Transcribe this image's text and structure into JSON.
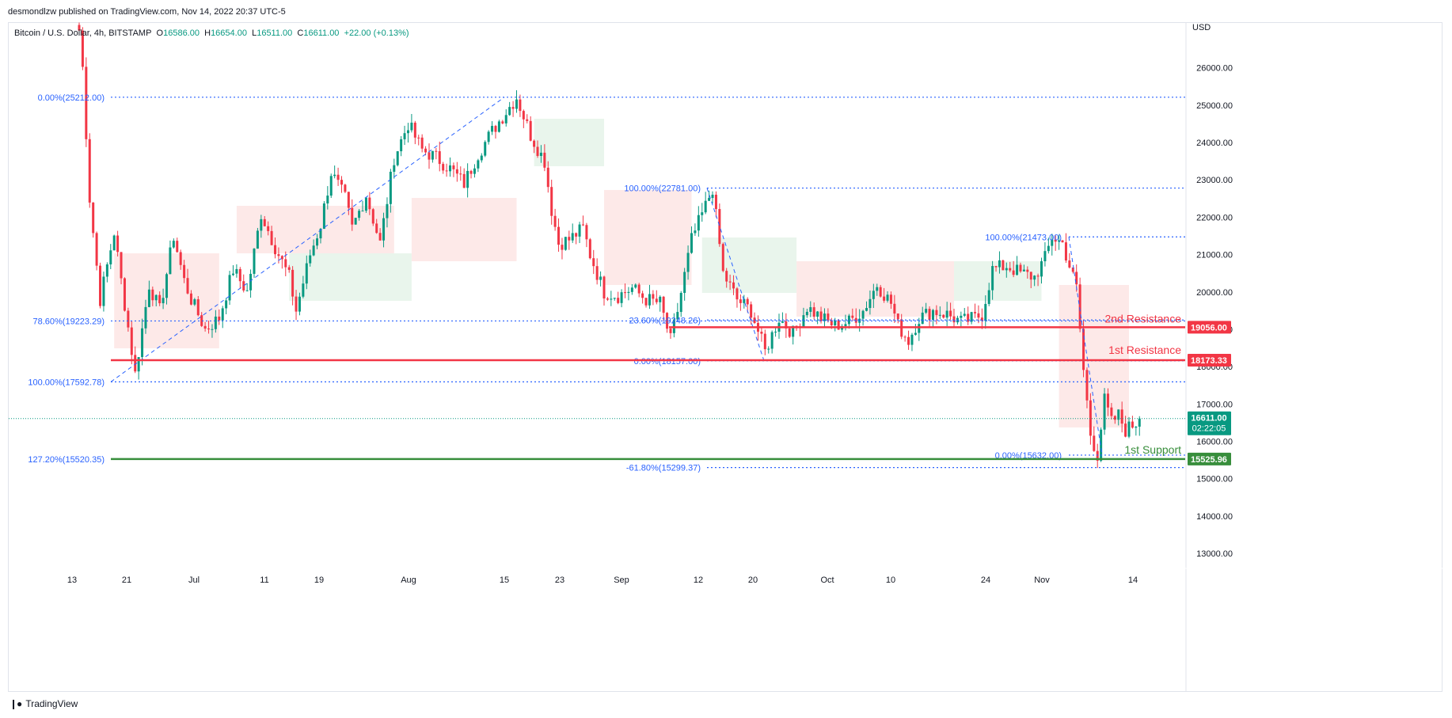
{
  "header": {
    "published": "desmondlzw published on TradingView.com, Nov 14, 2022 20:37 UTC-5"
  },
  "legend": {
    "symbol": "Bitcoin / U.S. Dollar, 4h, BITSTAMP",
    "open_label": "O",
    "open": "16586.00",
    "high_label": "H",
    "high": "16654.00",
    "low_label": "L",
    "low": "16511.00",
    "close_label": "C",
    "close": "16611.00",
    "change": "+22.00 (+0.13%)"
  },
  "footer": {
    "brand": "TradingView"
  },
  "chart_data": {
    "type": "candlestick",
    "currency": "USD",
    "ylim": [
      12600,
      27200
    ],
    "y_ticks": [
      13000,
      14000,
      15000,
      16000,
      17000,
      18000,
      19000,
      20000,
      21000,
      22000,
      23000,
      24000,
      25000,
      26000
    ],
    "x_ticks": [
      "13",
      "21",
      "Jul",
      "11",
      "19",
      "Aug",
      "15",
      "23",
      "Sep",
      "12",
      "20",
      "Oct",
      "10",
      "24",
      "Nov",
      "14"
    ],
    "colors": {
      "up": "#089981",
      "down": "#f23645",
      "resistance": "#f23645",
      "support": "#388e3c",
      "fib": "#2962ff",
      "cloud_bear": "#fde7e5",
      "cloud_bull": "#e7f4ea"
    },
    "price_path": [
      [
        0,
        27000
      ],
      [
        1,
        26000
      ],
      [
        3,
        22500
      ],
      [
        6,
        19800
      ],
      [
        10,
        21600
      ],
      [
        12,
        20300
      ],
      [
        16,
        17800
      ],
      [
        20,
        20200
      ],
      [
        23,
        19500
      ],
      [
        27,
        21500
      ],
      [
        30,
        20300
      ],
      [
        32,
        19800
      ],
      [
        36,
        19000
      ],
      [
        40,
        19300
      ],
      [
        44,
        20600
      ],
      [
        48,
        20000
      ],
      [
        52,
        22100
      ],
      [
        56,
        21200
      ],
      [
        60,
        20400
      ],
      [
        62,
        19500
      ],
      [
        66,
        21000
      ],
      [
        69,
        21800
      ],
      [
        72,
        23200
      ],
      [
        76,
        22500
      ],
      [
        78,
        21700
      ],
      [
        82,
        22600
      ],
      [
        86,
        21300
      ],
      [
        90,
        23600
      ],
      [
        94,
        24500
      ],
      [
        98,
        23800
      ],
      [
        102,
        23600
      ],
      [
        106,
        23300
      ],
      [
        110,
        22900
      ],
      [
        114,
        23700
      ],
      [
        118,
        24300
      ],
      [
        121,
        24700
      ],
      [
        125,
        25212
      ],
      [
        129,
        24200
      ],
      [
        133,
        23500
      ],
      [
        135,
        22200
      ],
      [
        137,
        21300
      ],
      [
        140,
        21400
      ],
      [
        144,
        21700
      ],
      [
        146,
        21000
      ],
      [
        150,
        20000
      ],
      [
        154,
        19900
      ],
      [
        158,
        20100
      ],
      [
        162,
        19800
      ],
      [
        166,
        19700
      ],
      [
        169,
        18700
      ],
      [
        171,
        19500
      ],
      [
        175,
        21400
      ],
      [
        179,
        22300
      ],
      [
        181,
        22781
      ],
      [
        184,
        20500
      ],
      [
        188,
        19800
      ],
      [
        192,
        19500
      ],
      [
        196,
        18400
      ],
      [
        200,
        19300
      ],
      [
        204,
        18900
      ],
      [
        208,
        19600
      ],
      [
        212,
        19300
      ],
      [
        216,
        19100
      ],
      [
        220,
        19200
      ],
      [
        224,
        19500
      ],
      [
        228,
        20200
      ],
      [
        232,
        19700
      ],
      [
        234,
        19100
      ],
      [
        237,
        18700
      ],
      [
        240,
        19300
      ],
      [
        244,
        19500
      ],
      [
        248,
        19400
      ],
      [
        252,
        19200
      ],
      [
        256,
        19300
      ],
      [
        258,
        19400
      ],
      [
        261,
        20600
      ],
      [
        265,
        20700
      ],
      [
        269,
        20500
      ],
      [
        273,
        20400
      ],
      [
        276,
        20900
      ],
      [
        278,
        21473
      ],
      [
        281,
        21300
      ],
      [
        283,
        20700
      ],
      [
        285,
        20100
      ],
      [
        287,
        17900
      ],
      [
        289,
        16200
      ],
      [
        291,
        15632
      ],
      [
        293,
        17100
      ],
      [
        295,
        16500
      ],
      [
        297,
        16700
      ],
      [
        299,
        16300
      ],
      [
        302,
        16500
      ],
      [
        303,
        16611
      ]
    ],
    "horizontal_levels": [
      {
        "price": 19056,
        "label": "2nd Resistance",
        "tag": "19056.00",
        "kind": "resistance"
      },
      {
        "price": 18173.33,
        "label": "1st Resistance",
        "tag": "18173.33",
        "kind": "resistance"
      },
      {
        "price": 15525.96,
        "label": "1st Support",
        "tag": "15525.96",
        "kind": "support"
      }
    ],
    "last_price": {
      "value": "16611.00",
      "countdown": "02:22:05"
    },
    "fib_levels": [
      {
        "text": "0.00%(25212.00)",
        "price": 25212
      },
      {
        "text": "78.60%(19223.29)",
        "price": 19223.29
      },
      {
        "text": "100.00%(17592.78)",
        "price": 17592.78
      },
      {
        "text": "127.20%(15520.35)",
        "price": 15520.35
      },
      {
        "text": "100.00%(22781.00)",
        "price": 22781
      },
      {
        "text": "23.60%(19248.26)",
        "price": 19248.26
      },
      {
        "text": "0.00%(18157.00)",
        "price": 18157
      },
      {
        "text": "-61.80%(15299.37)",
        "price": 15299.37
      },
      {
        "text": "100.00%(21473.00)",
        "price": 21473
      },
      {
        "text": "0.00%(15632.00)",
        "price": 15632
      }
    ]
  }
}
